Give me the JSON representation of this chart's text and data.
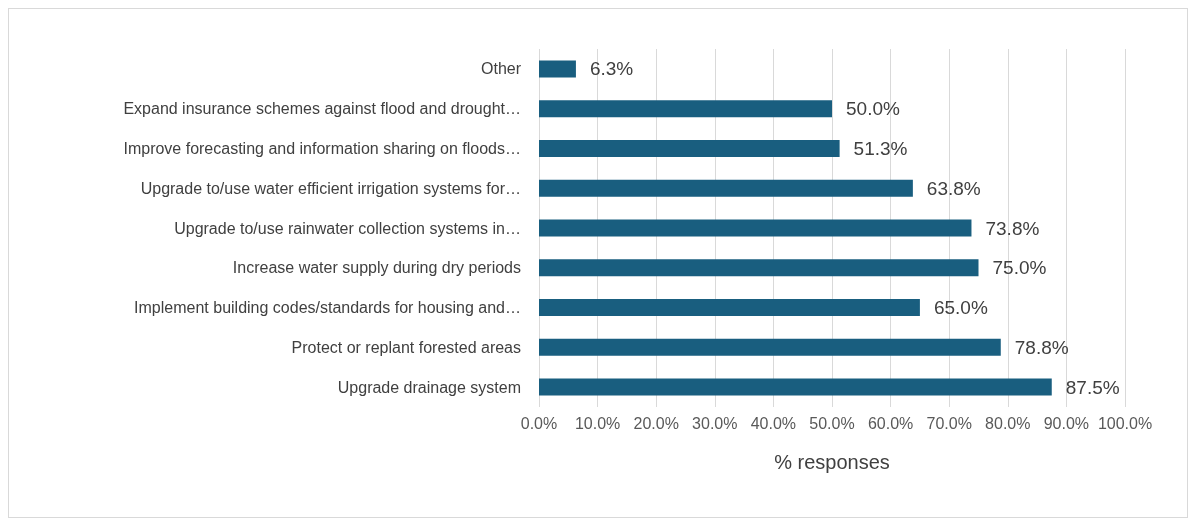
{
  "chart_data": {
    "type": "bar",
    "orientation": "horizontal",
    "xlabel": "% responses",
    "categories": [
      "Other",
      "Expand insurance schemes against flood and drought…",
      "Improve forecasting and information sharing on floods…",
      "Upgrade to/use water efficient irrigation systems for…",
      "Upgrade to/use rainwater collection systems in…",
      "Increase water supply during dry periods",
      "Implement building codes/standards for housing and…",
      "Protect or replant forested areas",
      "Upgrade drainage system"
    ],
    "values": [
      6.3,
      50.0,
      51.3,
      63.8,
      73.8,
      75.0,
      65.0,
      78.8,
      87.5
    ],
    "value_labels": [
      "6.3%",
      "50.0%",
      "51.3%",
      "63.8%",
      "73.8%",
      "75.0%",
      "65.0%",
      "78.8%",
      "87.5%"
    ],
    "color": "#195e7f",
    "xlim": [
      0,
      100
    ],
    "xticks": [
      {
        "value": 0,
        "label": "0.0%"
      },
      {
        "value": 10,
        "label": "10.0%"
      },
      {
        "value": 20,
        "label": "20.0%"
      },
      {
        "value": 30,
        "label": "30.0%"
      },
      {
        "value": 40,
        "label": "40.0%"
      },
      {
        "value": 50,
        "label": "50.0%"
      },
      {
        "value": 60,
        "label": "60.0%"
      },
      {
        "value": 70,
        "label": "70.0%"
      },
      {
        "value": 80,
        "label": "80.0%"
      },
      {
        "value": 90,
        "label": "90.0%"
      },
      {
        "value": 100,
        "label": "100.0%"
      }
    ],
    "grid": "x"
  }
}
